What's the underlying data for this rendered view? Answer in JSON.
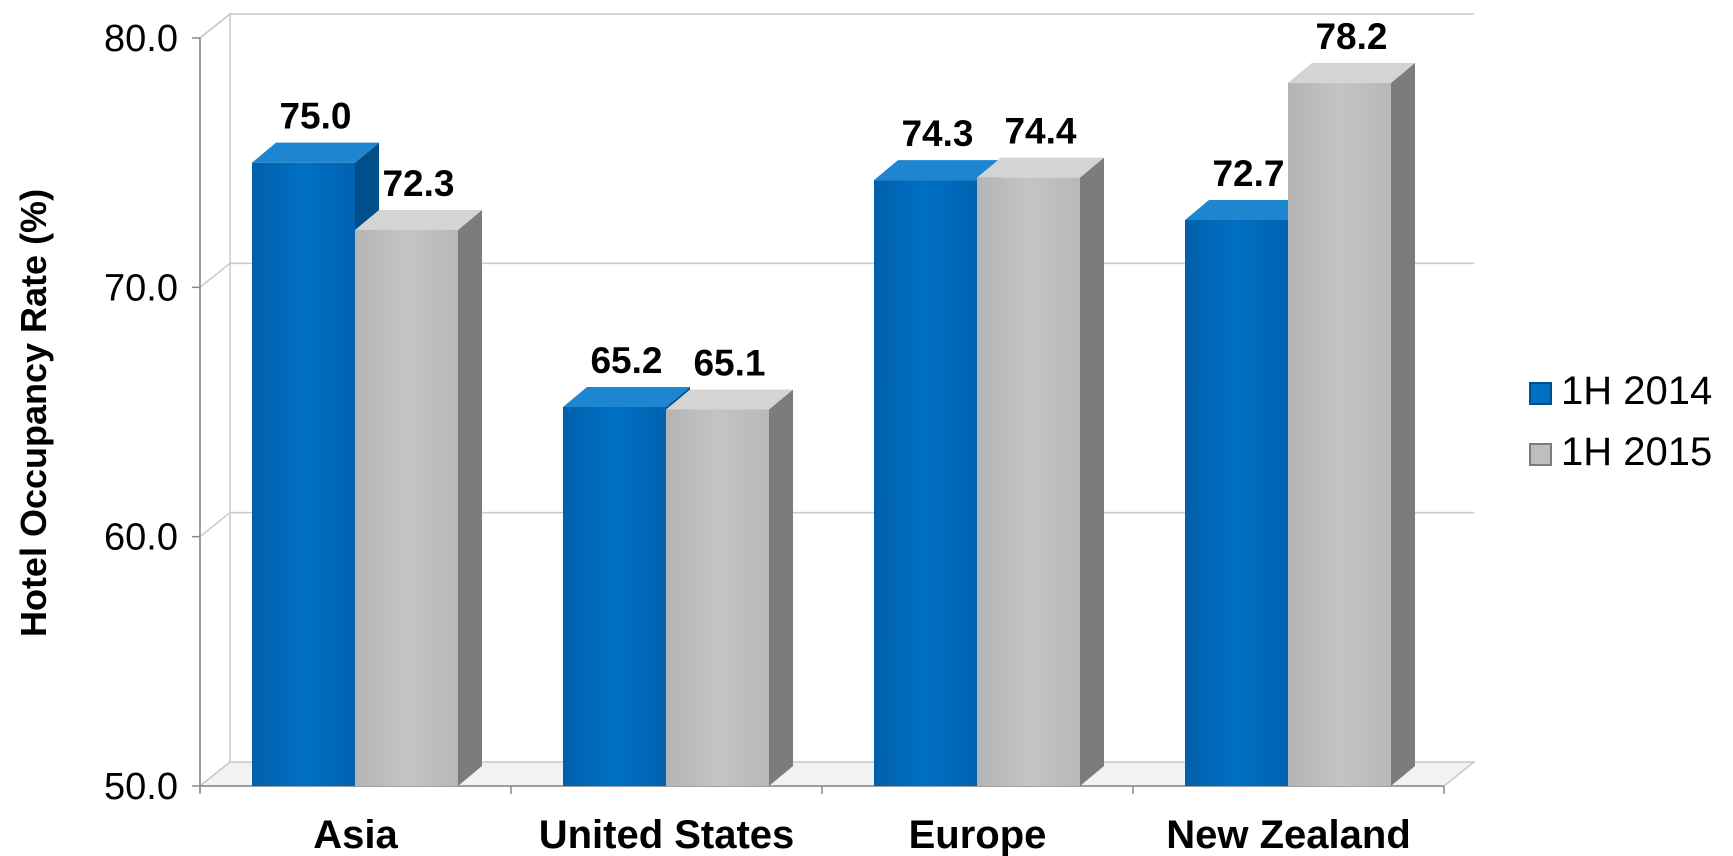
{
  "chart_data": {
    "type": "bar",
    "title": "",
    "xlabel": "",
    "ylabel": "Hotel Occupancy Rate (%)",
    "ylim": [
      50.0,
      80.0
    ],
    "yticks": [
      "50.0",
      "60.0",
      "70.0",
      "80.0"
    ],
    "categories": [
      "Asia",
      "United States",
      "Europe",
      "New Zealand"
    ],
    "series": [
      {
        "name": "1H 2014",
        "values": [
          75.0,
          65.2,
          74.3,
          72.7
        ],
        "labels": [
          "75.0",
          "65.2",
          "74.3",
          "72.7"
        ],
        "color": "#0070C0"
      },
      {
        "name": "1H 2015",
        "values": [
          72.3,
          65.1,
          74.4,
          78.2
        ],
        "labels": [
          "72.3",
          "65.1",
          "74.4",
          "78.2"
        ],
        "color": "#C0C0C0"
      }
    ],
    "style": "3d-clustered-column",
    "grid": true,
    "legend": "right"
  }
}
